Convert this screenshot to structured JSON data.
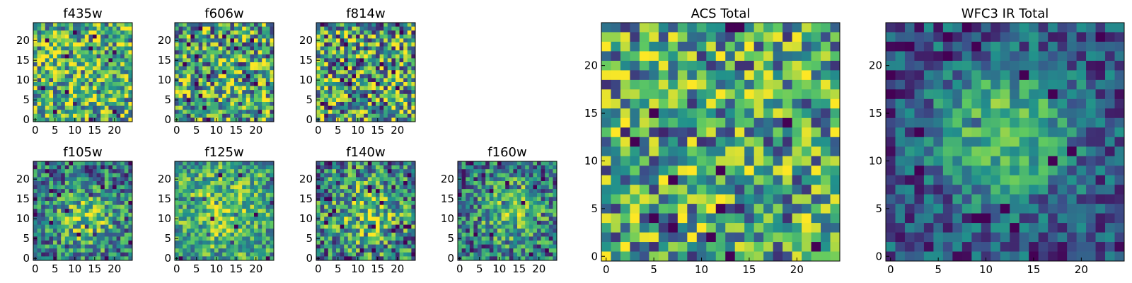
{
  "figure": {
    "colormap": [
      "#440154",
      "#3b528b",
      "#21918c",
      "#5ec962",
      "#fde725"
    ],
    "axis_color": "#000000",
    "background": "#ffffff"
  },
  "chart_data": [
    {
      "type": "heatmap",
      "title": "f435w",
      "grid_size": 25,
      "xlim": [
        -0.5,
        24.5
      ],
      "ylim": [
        -0.5,
        24.5
      ],
      "xticks": [
        0,
        5,
        10,
        15,
        20
      ],
      "yticks": [
        0,
        5,
        10,
        15,
        20
      ],
      "tick_labels_x": [
        "0",
        "5",
        "10",
        "15",
        "20"
      ],
      "tick_labels_y": [
        "0",
        "5",
        "10",
        "15",
        "20"
      ],
      "colormap": "viridis",
      "value_mean": 0.65,
      "value_spread": 0.55,
      "blob": null,
      "seed": 11
    },
    {
      "type": "heatmap",
      "title": "f606w",
      "grid_size": 25,
      "xlim": [
        -0.5,
        24.5
      ],
      "ylim": [
        -0.5,
        24.5
      ],
      "xticks": [
        0,
        5,
        10,
        15,
        20
      ],
      "yticks": [
        0,
        5,
        10,
        15,
        20
      ],
      "tick_labels_x": [
        "0",
        "5",
        "10",
        "15",
        "20"
      ],
      "tick_labels_y": [
        "0",
        "5",
        "10",
        "15",
        "20"
      ],
      "colormap": "viridis",
      "value_mean": 0.6,
      "value_spread": 0.6,
      "blob": null,
      "seed": 23
    },
    {
      "type": "heatmap",
      "title": "f814w",
      "grid_size": 25,
      "xlim": [
        -0.5,
        24.5
      ],
      "ylim": [
        -0.5,
        24.5
      ],
      "xticks": [
        0,
        5,
        10,
        15,
        20
      ],
      "yticks": [
        0,
        5,
        10,
        15,
        20
      ],
      "tick_labels_x": [
        "0",
        "5",
        "10",
        "15",
        "20"
      ],
      "tick_labels_y": [
        "0",
        "5",
        "10",
        "15",
        "20"
      ],
      "colormap": "viridis",
      "value_mean": 0.58,
      "value_spread": 0.65,
      "blob": null,
      "seed": 37
    },
    {
      "type": "heatmap",
      "title": "f105w",
      "grid_size": 25,
      "xlim": [
        -0.5,
        24.5
      ],
      "ylim": [
        -0.5,
        24.5
      ],
      "xticks": [
        0,
        5,
        10,
        15,
        20
      ],
      "yticks": [
        0,
        5,
        10,
        15,
        20
      ],
      "tick_labels_x": [
        "0",
        "5",
        "10",
        "15",
        "20"
      ],
      "tick_labels_y": [
        "0",
        "5",
        "10",
        "15",
        "20"
      ],
      "colormap": "viridis",
      "value_mean": 0.5,
      "value_spread": 0.45,
      "blob": {
        "x": 13,
        "y": 10,
        "amp": 0.35,
        "sigma": 6
      },
      "seed": 41
    },
    {
      "type": "heatmap",
      "title": "f125w",
      "grid_size": 25,
      "xlim": [
        -0.5,
        24.5
      ],
      "ylim": [
        -0.5,
        24.5
      ],
      "xticks": [
        0,
        5,
        10,
        15,
        20
      ],
      "yticks": [
        0,
        5,
        10,
        15,
        20
      ],
      "tick_labels_x": [
        "0",
        "5",
        "10",
        "15",
        "20"
      ],
      "tick_labels_y": [
        "0",
        "5",
        "10",
        "15",
        "20"
      ],
      "colormap": "viridis",
      "value_mean": 0.62,
      "value_spread": 0.4,
      "blob": {
        "x": 12,
        "y": 12,
        "amp": 0.25,
        "sigma": 7
      },
      "seed": 53
    },
    {
      "type": "heatmap",
      "title": "f140w",
      "grid_size": 25,
      "xlim": [
        -0.5,
        24.5
      ],
      "ylim": [
        -0.5,
        24.5
      ],
      "xticks": [
        0,
        5,
        10,
        15,
        20
      ],
      "yticks": [
        0,
        5,
        10,
        15,
        20
      ],
      "tick_labels_x": [
        "0",
        "5",
        "10",
        "15",
        "20"
      ],
      "tick_labels_y": [
        "0",
        "5",
        "10",
        "15",
        "20"
      ],
      "colormap": "viridis",
      "value_mean": 0.55,
      "value_spread": 0.5,
      "blob": {
        "x": 12,
        "y": 11,
        "amp": 0.3,
        "sigma": 6
      },
      "seed": 67
    },
    {
      "type": "heatmap",
      "title": "f160w",
      "grid_size": 25,
      "xlim": [
        -0.5,
        24.5
      ],
      "ylim": [
        -0.5,
        24.5
      ],
      "xticks": [
        0,
        5,
        10,
        15,
        20
      ],
      "yticks": [
        0,
        5,
        10,
        15,
        20
      ],
      "tick_labels_x": [
        "0",
        "5",
        "10",
        "15",
        "20"
      ],
      "tick_labels_y": [
        "0",
        "5",
        "10",
        "15",
        "20"
      ],
      "colormap": "viridis",
      "value_mean": 0.5,
      "value_spread": 0.45,
      "blob": {
        "x": 13,
        "y": 12,
        "amp": 0.35,
        "sigma": 6
      },
      "seed": 79
    },
    {
      "type": "heatmap",
      "title": "ACS Total",
      "grid_size": 25,
      "xlim": [
        -0.5,
        24.5
      ],
      "ylim": [
        -0.5,
        24.5
      ],
      "xticks": [
        0,
        5,
        10,
        15,
        20
      ],
      "yticks": [
        0,
        5,
        10,
        15,
        20
      ],
      "tick_labels_x": [
        "0",
        "5",
        "10",
        "15",
        "20"
      ],
      "tick_labels_y": [
        "0",
        "5",
        "10",
        "15",
        "20"
      ],
      "colormap": "viridis",
      "value_mean": 0.58,
      "value_spread": 0.55,
      "blob": null,
      "seed": 97
    },
    {
      "type": "heatmap",
      "title": "WFC3 IR Total",
      "grid_size": 25,
      "xlim": [
        -0.5,
        24.5
      ],
      "ylim": [
        -0.5,
        24.5
      ],
      "xticks": [
        0,
        5,
        10,
        15,
        20
      ],
      "yticks": [
        0,
        5,
        10,
        15,
        20
      ],
      "tick_labels_x": [
        "0",
        "5",
        "10",
        "15",
        "20"
      ],
      "tick_labels_y": [
        "0",
        "5",
        "10",
        "15",
        "20"
      ],
      "colormap": "viridis",
      "value_mean": 0.42,
      "value_spread": 0.3,
      "blob": {
        "x": 12,
        "y": 13,
        "amp": 0.5,
        "sigma": 5
      },
      "seed": 113
    }
  ]
}
